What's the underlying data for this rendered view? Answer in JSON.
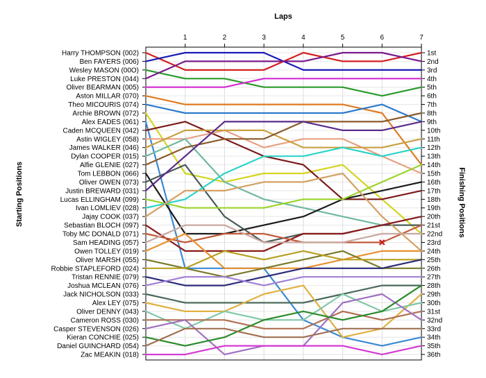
{
  "chart_data": {
    "type": "line",
    "title": "",
    "xlabel": "Laps",
    "ylabel_left": "Starting Positions",
    "ylabel_right": "Finishing Positions",
    "laps": [
      0,
      1,
      2,
      3,
      4,
      5,
      6,
      7
    ],
    "lap_tick_labels": [
      "1",
      "2",
      "3",
      "4",
      "5",
      "6",
      "7"
    ],
    "ylim": [
      1,
      36
    ],
    "y_inverted": true,
    "grid": true,
    "finishing_labels": [
      "1st",
      "2nd",
      "3rd",
      "4th",
      "5th",
      "6th",
      "7th",
      "8th",
      "9th",
      "10th",
      "11th",
      "12th",
      "13th",
      "14th",
      "15th",
      "16th",
      "17th",
      "18th",
      "19th",
      "20th",
      "21st",
      "22nd",
      "23rd",
      "24th",
      "25th",
      "26th",
      "27th",
      "28th",
      "29th",
      "30th",
      "31st",
      "32nd",
      "33rd",
      "34th",
      "35th",
      "36th"
    ],
    "series": [
      {
        "name": "Harry THOMPSON (002)",
        "color": "#d42020",
        "positions": [
          1,
          3,
          3,
          3,
          1,
          2,
          2,
          1
        ]
      },
      {
        "name": "Ben FAYERS (006)",
        "color": "#1a1ab8",
        "positions": [
          2,
          1,
          1,
          1,
          3,
          3,
          3,
          3
        ]
      },
      {
        "name": "Wesley MASON (00O)",
        "color": "#2a9a2a",
        "positions": [
          3,
          4,
          4,
          5,
          5,
          5,
          6,
          5
        ]
      },
      {
        "name": "Luke PRESTON (044)",
        "color": "#7a1a8a",
        "positions": [
          4,
          2,
          2,
          2,
          2,
          1,
          1,
          2
        ]
      },
      {
        "name": "Oliver BEARMAN (005)",
        "color": "#d42ad4",
        "positions": [
          5,
          5,
          5,
          4,
          4,
          4,
          4,
          4
        ]
      },
      {
        "name": "Aston MILLAR (070)",
        "color": "#e07a20",
        "positions": [
          6,
          7,
          7,
          7,
          7,
          7,
          8,
          14
        ]
      },
      {
        "name": "Theo MICOURIS (074)",
        "color": "#2a7acc",
        "positions": [
          7,
          8,
          8,
          8,
          8,
          8,
          7,
          9
        ]
      },
      {
        "name": "Archie BROWN (072)",
        "color": "#d4d420",
        "positions": [
          8,
          15,
          16,
          15,
          15,
          14,
          18,
          22
        ]
      },
      {
        "name": "Alex EADES (061)",
        "color": "#3a8ad4",
        "positions": [
          9,
          26,
          26,
          26,
          32,
          34,
          35,
          34
        ]
      },
      {
        "name": "Caden MCQUEEN (042)",
        "color": "#7a1a1a",
        "positions": [
          10,
          9,
          11,
          13,
          14,
          18,
          18,
          17
        ]
      },
      {
        "name": "Astin WIGLEY (058)",
        "color": "#e8a080",
        "positions": [
          11,
          11,
          10,
          12,
          11,
          11,
          13,
          15
        ]
      },
      {
        "name": "James WALKER (046)",
        "color": "#c8a040",
        "positions": [
          12,
          10,
          10,
          10,
          12,
          12,
          12,
          11
        ]
      },
      {
        "name": "Dylan COOPER (015)",
        "color": "#70b8a0",
        "positions": [
          13,
          11,
          16,
          18,
          19,
          20,
          21,
          20
        ]
      },
      {
        "name": "Alfie GLENIE (027)",
        "color": "#8a5a2a",
        "positions": [
          14,
          12,
          11,
          11,
          9,
          9,
          9,
          8
        ]
      },
      {
        "name": "Tom LEBBON (066)",
        "color": "#1a1a1a",
        "positions": [
          15,
          22,
          22,
          21,
          20,
          18,
          17,
          16
        ]
      },
      {
        "name": "Oliver OWEN (073)",
        "color": "#4a5a5a",
        "positions": [
          16,
          14,
          20,
          23,
          22,
          22,
          21,
          21
        ]
      },
      {
        "name": "Justin BREWARD (031)",
        "color": "#5a2a8a",
        "positions": [
          17,
          13,
          9,
          9,
          9,
          10,
          10,
          9
        ]
      },
      {
        "name": "Lucas ELLINGHAM (099)",
        "color": "#9ad42a",
        "positions": [
          18,
          19,
          19,
          19,
          18,
          18,
          16,
          14
        ]
      },
      {
        "name": "Ivan LOMLIEV (028)",
        "color": "#2ad4c8",
        "positions": [
          19,
          18,
          15,
          13,
          13,
          12,
          13,
          12
        ]
      },
      {
        "name": "Jajay COOK (037)",
        "color": "#d4a060",
        "positions": [
          20,
          17,
          17,
          16,
          16,
          15,
          20,
          24
        ]
      },
      {
        "name": "Sebastian BLOCH (097)",
        "color": "#8a1a1a",
        "positions": [
          21,
          24,
          24,
          24,
          22,
          22,
          21,
          20
        ]
      },
      {
        "name": "Toby MC DONALD (071)",
        "color": "#c05a3a",
        "positions": [
          22,
          23,
          22,
          22,
          23,
          23,
          23,
          21
        ]
      },
      {
        "name": "Sam HEADING (057)",
        "color": "#c8a8a0",
        "positions": [
          23,
          21,
          21,
          23,
          23,
          23,
          22,
          22
        ]
      },
      {
        "name": "Owen TOLLEY (019)",
        "color": "#e89030",
        "positions": [
          24,
          22,
          26,
          26,
          26,
          25,
          24,
          24
        ]
      },
      {
        "name": "Oliver MARSH (055)",
        "color": "#7a7a2a",
        "positions": [
          25,
          26,
          27,
          26,
          25,
          24,
          26,
          26
        ]
      },
      {
        "name": "Robbie STAPLEFORD (024)",
        "color": "#b8a020",
        "positions": [
          26,
          26,
          24,
          25,
          24,
          25,
          25,
          25
        ]
      },
      {
        "name": "Tristan RENNIE (079)",
        "color": "#2a2a7a",
        "positions": [
          27,
          28,
          28,
          27,
          26,
          26,
          26,
          25
        ]
      },
      {
        "name": "Joshua MCLEAN (076)",
        "color": "#a080d4",
        "positions": [
          28,
          27,
          27,
          28,
          27,
          27,
          27,
          27
        ]
      },
      {
        "name": "Jack NICHOLSON (033)",
        "color": "#4a6a5a",
        "positions": [
          29,
          30,
          30,
          30,
          30,
          29,
          28,
          28
        ]
      },
      {
        "name": "Alex LEY (075)",
        "color": "#e0b040",
        "positions": [
          30,
          31,
          31,
          29,
          28,
          34,
          33,
          29
        ]
      },
      {
        "name": "Oliver DENNY (043)",
        "color": "#80c8a8",
        "positions": [
          31,
          33,
          31,
          32,
          32,
          29,
          31,
          30
        ]
      },
      {
        "name": "Cameron ROSS (030)",
        "color": "#b07050",
        "positions": [
          32,
          32,
          32,
          33,
          33,
          31,
          32,
          31
        ]
      },
      {
        "name": "Casper STEVENSON (026)",
        "color": "#a070c0",
        "positions": [
          33,
          32,
          36,
          35,
          35,
          30,
          29,
          32
        ]
      },
      {
        "name": "Kieran CONCHIE (025)",
        "color": "#2a8a2a",
        "positions": [
          34,
          35,
          34,
          32,
          31,
          32,
          31,
          28
        ]
      },
      {
        "name": "Daniel GUINCHARD (054)",
        "color": "#a07050",
        "positions": [
          35,
          33,
          33,
          34,
          34,
          33,
          33,
          33
        ]
      },
      {
        "name": "Zac MEAKIN (018)",
        "color": "#d43ad4",
        "positions": [
          36,
          36,
          35,
          35,
          35,
          35,
          36,
          35
        ]
      }
    ],
    "annotations": [
      {
        "type": "marker",
        "symbol": "x",
        "lap": 6,
        "position": 23,
        "color": "#cc2020"
      }
    ]
  }
}
